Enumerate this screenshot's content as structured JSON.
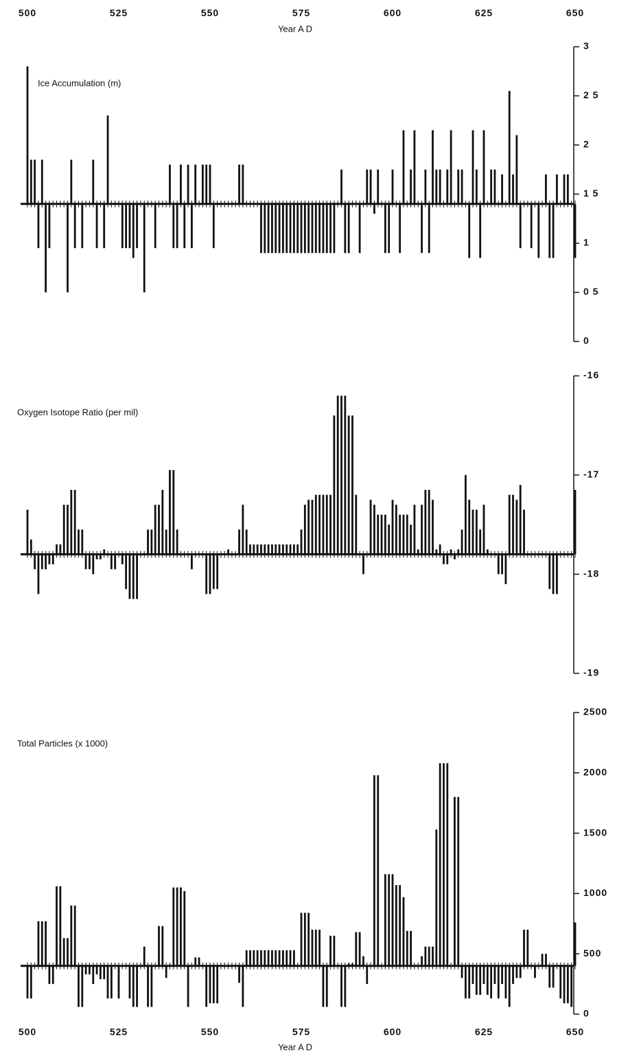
{
  "chart_data": {
    "type": "bar",
    "xlabel": "Year A D",
    "xlim": [
      500,
      650
    ],
    "xticks": [
      500,
      525,
      550,
      575,
      600,
      625,
      650
    ],
    "color": "#111111",
    "x": [
      500,
      501,
      502,
      503,
      504,
      505,
      506,
      507,
      508,
      509,
      510,
      511,
      512,
      513,
      514,
      515,
      516,
      517,
      518,
      519,
      520,
      521,
      522,
      523,
      524,
      525,
      526,
      527,
      528,
      529,
      530,
      531,
      532,
      533,
      534,
      535,
      536,
      537,
      538,
      539,
      540,
      541,
      542,
      543,
      544,
      545,
      546,
      547,
      548,
      549,
      550,
      551,
      552,
      553,
      554,
      555,
      556,
      557,
      558,
      559,
      560,
      561,
      562,
      563,
      564,
      565,
      566,
      567,
      568,
      569,
      570,
      571,
      572,
      573,
      574,
      575,
      576,
      577,
      578,
      579,
      580,
      581,
      582,
      583,
      584,
      585,
      586,
      587,
      588,
      589,
      590,
      591,
      592,
      593,
      594,
      595,
      596,
      597,
      598,
      599,
      600,
      601,
      602,
      603,
      604,
      605,
      606,
      607,
      608,
      609,
      610,
      611,
      612,
      613,
      614,
      615,
      616,
      617,
      618,
      619,
      620,
      621,
      622,
      623,
      624,
      625,
      626,
      627,
      628,
      629,
      630,
      631,
      632,
      633,
      634,
      635,
      636,
      637,
      638,
      639,
      640,
      641,
      642,
      643,
      644,
      645,
      646,
      647,
      648,
      649,
      650
    ],
    "panels": [
      {
        "title": "Ice Accumulation (m)",
        "baseline": 1.4,
        "ylim": [
          0,
          3
        ],
        "yticks": [
          0,
          {
            "value": 0.5,
            "label": "0 5"
          },
          1,
          {
            "value": 1.5,
            "label": "1 5"
          },
          2,
          {
            "value": 2.5,
            "label": "2 5"
          },
          3
        ],
        "values": [
          2.8,
          1.85,
          1.85,
          0.95,
          1.85,
          0.5,
          0.95,
          1.4,
          1.4,
          1.4,
          1.4,
          0.5,
          1.85,
          0.95,
          1.4,
          0.95,
          1.4,
          1.4,
          1.85,
          0.95,
          1.4,
          0.95,
          2.3,
          1.4,
          1.4,
          1.4,
          0.95,
          0.95,
          0.95,
          0.85,
          0.95,
          1.4,
          0.5,
          1.4,
          1.4,
          0.95,
          1.4,
          1.4,
          1.4,
          1.8,
          0.95,
          0.95,
          1.8,
          0.95,
          1.8,
          0.95,
          1.8,
          1.4,
          1.8,
          1.8,
          1.8,
          0.95,
          1.4,
          1.4,
          1.4,
          1.4,
          1.4,
          1.4,
          1.8,
          1.8,
          1.4,
          1.4,
          1.4,
          1.4,
          0.9,
          0.9,
          0.9,
          0.9,
          0.9,
          0.9,
          0.9,
          0.9,
          0.9,
          0.9,
          0.9,
          0.9,
          0.9,
          0.9,
          0.9,
          0.9,
          0.9,
          0.9,
          0.9,
          0.9,
          0.9,
          1.4,
          1.75,
          0.9,
          0.9,
          1.4,
          1.4,
          0.9,
          1.4,
          1.75,
          1.75,
          1.3,
          1.75,
          1.4,
          0.9,
          0.9,
          1.75,
          1.4,
          0.9,
          2.15,
          1.4,
          1.75,
          2.15,
          1.4,
          0.9,
          1.75,
          0.9,
          2.15,
          1.75,
          1.75,
          1.4,
          1.75,
          2.15,
          1.4,
          1.75,
          1.75,
          1.4,
          0.85,
          2.15,
          1.75,
          0.85,
          2.15,
          1.4,
          1.75,
          1.75,
          1.4,
          1.7,
          1.4,
          2.55,
          1.7,
          2.1,
          0.95,
          1.4,
          1.4,
          0.95,
          1.4,
          0.85,
          1.4,
          1.7,
          0.85,
          0.85,
          1.7,
          1.4,
          1.7,
          1.7,
          1.4,
          0.85
        ]
      },
      {
        "title": "Oxygen Isotope Ratio (per mil)",
        "baseline": -17.8,
        "ylim": [
          -19,
          -16
        ],
        "yticks": [
          -19,
          -18,
          -17,
          -16
        ],
        "values": [
          -17.35,
          -17.65,
          -17.95,
          -18.2,
          -17.95,
          -17.95,
          -17.9,
          -17.9,
          -17.7,
          -17.7,
          -17.3,
          -17.3,
          -17.15,
          -17.15,
          -17.55,
          -17.55,
          -17.95,
          -17.95,
          -18.0,
          -17.85,
          -17.85,
          -17.75,
          -17.8,
          -17.95,
          -17.95,
          -17.8,
          -17.9,
          -18.15,
          -18.25,
          -18.25,
          -18.25,
          -17.8,
          -17.8,
          -17.55,
          -17.55,
          -17.3,
          -17.3,
          -17.15,
          -17.55,
          -16.95,
          -16.95,
          -17.55,
          -17.8,
          -17.8,
          -17.8,
          -17.95,
          -17.8,
          -17.8,
          -17.8,
          -18.2,
          -18.2,
          -18.15,
          -18.15,
          -17.8,
          -17.8,
          -17.75,
          -17.8,
          -17.8,
          -17.55,
          -17.3,
          -17.55,
          -17.7,
          -17.7,
          -17.7,
          -17.7,
          -17.7,
          -17.7,
          -17.7,
          -17.7,
          -17.7,
          -17.7,
          -17.7,
          -17.7,
          -17.7,
          -17.7,
          -17.55,
          -17.3,
          -17.25,
          -17.25,
          -17.2,
          -17.2,
          -17.2,
          -17.2,
          -17.2,
          -16.4,
          -16.2,
          -16.2,
          -16.2,
          -16.4,
          -16.4,
          -17.2,
          -17.8,
          -18.0,
          -17.8,
          -17.25,
          -17.3,
          -17.4,
          -17.4,
          -17.4,
          -17.5,
          -17.25,
          -17.3,
          -17.4,
          -17.4,
          -17.4,
          -17.5,
          -17.3,
          -17.75,
          -17.3,
          -17.15,
          -17.15,
          -17.25,
          -17.75,
          -17.7,
          -17.9,
          -17.9,
          -17.75,
          -17.85,
          -17.75,
          -17.55,
          -17.0,
          -17.25,
          -17.35,
          -17.35,
          -17.55,
          -17.3,
          -17.75,
          -17.8,
          -17.8,
          -18.0,
          -18.0,
          -18.1,
          -17.2,
          -17.2,
          -17.25,
          -17.1,
          -17.35,
          -17.8,
          -17.8,
          -17.8,
          -17.8,
          -17.8,
          -17.8,
          -18.15,
          -18.2,
          -18.2,
          -17.8,
          -17.8,
          -17.8,
          -17.8,
          -17.15
        ]
      },
      {
        "title": "Total Particles (x 1000)",
        "baseline": 400,
        "ylim": [
          0,
          2500
        ],
        "yticks": [
          0,
          500,
          1000,
          1500,
          2000,
          2500
        ],
        "values": [
          130,
          130,
          400,
          770,
          770,
          770,
          250,
          250,
          1060,
          1060,
          630,
          630,
          900,
          900,
          60,
          60,
          330,
          330,
          250,
          330,
          290,
          290,
          130,
          130,
          400,
          130,
          400,
          400,
          130,
          60,
          60,
          400,
          560,
          60,
          60,
          400,
          730,
          730,
          300,
          400,
          1050,
          1050,
          1050,
          1020,
          60,
          400,
          470,
          470,
          400,
          60,
          90,
          90,
          90,
          400,
          400,
          400,
          400,
          400,
          260,
          60,
          530,
          530,
          530,
          530,
          530,
          530,
          530,
          530,
          530,
          530,
          530,
          530,
          530,
          530,
          400,
          840,
          840,
          840,
          700,
          700,
          700,
          60,
          60,
          650,
          650,
          400,
          60,
          60,
          420,
          420,
          680,
          680,
          480,
          250,
          400,
          1980,
          1980,
          400,
          1160,
          1160,
          1160,
          1070,
          1070,
          970,
          690,
          690,
          400,
          400,
          480,
          560,
          560,
          560,
          1530,
          2080,
          2080,
          2080,
          400,
          1800,
          1800,
          300,
          130,
          130,
          250,
          160,
          160,
          250,
          160,
          130,
          250,
          130,
          250,
          130,
          60,
          250,
          300,
          300,
          700,
          700,
          400,
          300,
          400,
          500,
          500,
          220,
          220,
          400,
          130,
          90,
          90,
          60,
          760
        ]
      }
    ]
  }
}
